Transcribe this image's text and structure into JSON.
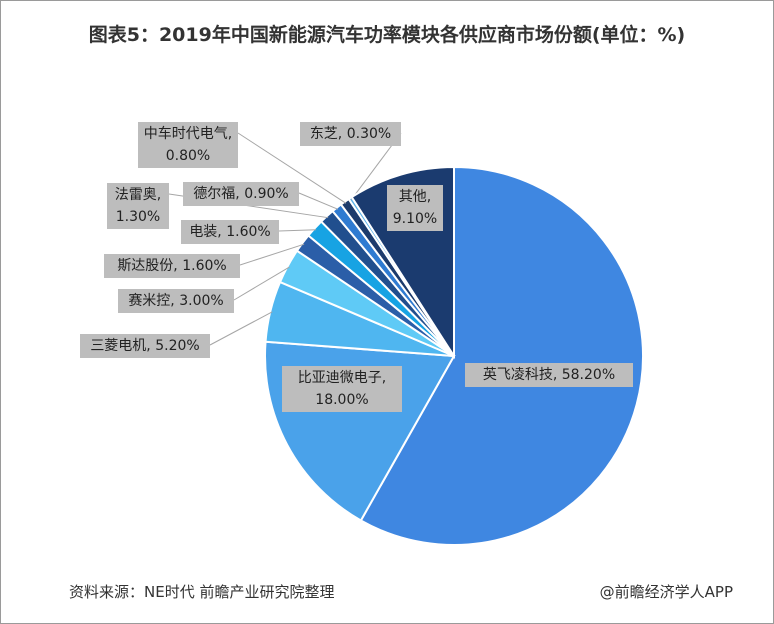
{
  "chart_data": {
    "type": "pie",
    "title": "图表5：2019年中国新能源汽车功率模块各供应商市场份额(单位：%)",
    "values": [
      58.2,
      18.0,
      5.2,
      3.0,
      1.6,
      1.6,
      1.3,
      0.9,
      0.8,
      0.3,
      9.1
    ],
    "value_labels": [
      "英飞凌科技, 58.20%",
      "比亚迪微电子, 18.00%",
      "三菱电机, 5.20%",
      "赛米控, 3.00%",
      "斯达股份, 1.60%",
      "电装, 1.60%",
      "法雷奥, 1.30%",
      "德尔福, 0.90%",
      "中车时代电气, 0.80%",
      "东芝, 0.30%",
      "其他, 9.10%"
    ],
    "colors": [
      "#3f87e1",
      "#4aa2ea",
      "#4fb6f0",
      "#5fcaf6",
      "#2b5ea8",
      "#17a3e3",
      "#214f8e",
      "#2f7bd1",
      "#1c3b6c",
      "#5cb2e9",
      "#1b3b6f"
    ],
    "source": "资料来源：NE时代 前瞻产业研究院整理",
    "credit": "@前瞻经济学人APP"
  }
}
